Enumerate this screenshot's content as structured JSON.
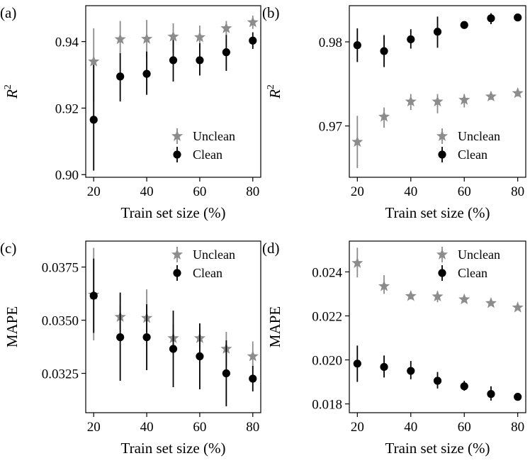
{
  "colors": {
    "unclean": "#8c8c8c",
    "clean": "#000000"
  },
  "chart_data": [
    {
      "type": "scatter",
      "panel_label": "(a)",
      "xlabel": "Train set size (%)",
      "ylabel": "R",
      "ylabel_sup": "2",
      "x": [
        20,
        30,
        40,
        50,
        60,
        70,
        80
      ],
      "xticks": [
        20,
        40,
        60,
        80
      ],
      "xlim": [
        17,
        83
      ],
      "yticks": [
        0.9,
        0.92,
        0.94
      ],
      "ytick_labels": [
        "0.90",
        "0.92",
        "0.94"
      ],
      "ylim": [
        0.8992,
        0.9508
      ],
      "legend": "lower-right",
      "series": [
        {
          "name": "Unclean",
          "marker": "star",
          "values": [
            0.934,
            0.9407,
            0.9408,
            0.9415,
            0.9413,
            0.944,
            0.9458
          ],
          "err_low": [
            0.922,
            0.936,
            0.935,
            0.937,
            0.938,
            0.9418,
            0.9438
          ],
          "err_high": [
            0.944,
            0.9462,
            0.9465,
            0.9455,
            0.9448,
            0.9462,
            0.9478
          ]
        },
        {
          "name": "Clean",
          "marker": "circle",
          "values": [
            0.9165,
            0.9295,
            0.9303,
            0.9344,
            0.9344,
            0.9368,
            0.9403
          ],
          "err_low": [
            0.9012,
            0.922,
            0.924,
            0.928,
            0.9298,
            0.9312,
            0.9378
          ],
          "err_high": [
            0.933,
            0.9365,
            0.937,
            0.9405,
            0.9395,
            0.942,
            0.9428
          ]
        }
      ]
    },
    {
      "type": "scatter",
      "panel_label": "(b)",
      "xlabel": "Train set size (%)",
      "ylabel": "R",
      "ylabel_sup": "2",
      "x": [
        20,
        30,
        40,
        50,
        60,
        70,
        80
      ],
      "xticks": [
        20,
        40,
        60,
        80
      ],
      "xlim": [
        17,
        83
      ],
      "yticks": [
        0.97,
        0.98
      ],
      "ytick_labels": [
        "0.97",
        "0.98"
      ],
      "ylim": [
        0.9639,
        0.9843
      ],
      "legend": "lower-right",
      "series": [
        {
          "name": "Unclean",
          "marker": "star",
          "values": [
            0.9681,
            0.9711,
            0.9729,
            0.9729,
            0.9731,
            0.9735,
            0.9739
          ],
          "err_low": [
            0.965,
            0.9698,
            0.9719,
            0.9715,
            0.9722,
            0.9731,
            0.9735
          ],
          "err_high": [
            0.9712,
            0.9722,
            0.9738,
            0.9738,
            0.9738,
            0.9739,
            0.9743
          ]
        },
        {
          "name": "Clean",
          "marker": "circle",
          "values": [
            0.9796,
            0.9789,
            0.9803,
            0.9812,
            0.982,
            0.9828,
            0.9829
          ],
          "err_low": [
            0.9776,
            0.977,
            0.9792,
            0.9793,
            0.9816,
            0.9821,
            0.9825
          ],
          "err_high": [
            0.9816,
            0.9808,
            0.9815,
            0.983,
            0.9824,
            0.9834,
            0.9833
          ]
        }
      ]
    },
    {
      "type": "scatter",
      "panel_label": "(c)",
      "xlabel": "Train set size (%)",
      "ylabel": "MAPE",
      "x": [
        20,
        30,
        40,
        50,
        60,
        70,
        80
      ],
      "xticks": [
        20,
        40,
        60,
        80
      ],
      "xlim": [
        17,
        83
      ],
      "yticks": [
        0.0325,
        0.035,
        0.0375
      ],
      "ytick_labels": [
        "0.0325",
        "0.0350",
        "0.0375"
      ],
      "ylim": [
        0.03065,
        0.03872
      ],
      "legend": "upper-right",
      "series": [
        {
          "name": "Unclean",
          "marker": "star",
          "values": [
            0.0362,
            0.03515,
            0.0351,
            0.03415,
            0.03415,
            0.03365,
            0.0333
          ],
          "err_low": [
            0.03405,
            0.03455,
            0.03445,
            0.0334,
            0.03375,
            0.03285,
            0.0327
          ],
          "err_high": [
            0.0384,
            0.03575,
            0.03645,
            0.0348,
            0.03465,
            0.03445,
            0.034
          ]
        },
        {
          "name": "Clean",
          "marker": "circle",
          "values": [
            0.03615,
            0.0342,
            0.0342,
            0.03365,
            0.0333,
            0.0325,
            0.03225
          ],
          "err_low": [
            0.0344,
            0.03215,
            0.03265,
            0.03185,
            0.03175,
            0.03095,
            0.03165
          ],
          "err_high": [
            0.0379,
            0.0363,
            0.03575,
            0.03545,
            0.03485,
            0.03405,
            0.03285
          ]
        }
      ]
    },
    {
      "type": "scatter",
      "panel_label": "(d)",
      "xlabel": "Train set size (%)",
      "ylabel": "MAPE",
      "x": [
        20,
        30,
        40,
        50,
        60,
        70,
        80
      ],
      "xticks": [
        20,
        40,
        60,
        80
      ],
      "xlim": [
        17,
        83
      ],
      "yticks": [
        0.018,
        0.02,
        0.022,
        0.024
      ],
      "ytick_labels": [
        "0.018",
        "0.020",
        "0.022",
        "0.024"
      ],
      "ylim": [
        0.0176,
        0.0254
      ],
      "legend": "upper-right",
      "series": [
        {
          "name": "Unclean",
          "marker": "star",
          "values": [
            0.0244,
            0.02335,
            0.0229,
            0.02288,
            0.02275,
            0.02258,
            0.02238
          ],
          "err_low": [
            0.02375,
            0.023,
            0.02275,
            0.02262,
            0.02262,
            0.02248,
            0.02228
          ],
          "err_high": [
            0.0251,
            0.02385,
            0.02305,
            0.02312,
            0.0229,
            0.0227,
            0.02248
          ]
        },
        {
          "name": "Clean",
          "marker": "circle",
          "values": [
            0.01983,
            0.01968,
            0.0195,
            0.01905,
            0.0188,
            0.01845,
            0.01832
          ],
          "err_low": [
            0.019,
            0.0192,
            0.01912,
            0.0187,
            0.0186,
            0.01815,
            0.01815
          ],
          "err_high": [
            0.02065,
            0.0202,
            0.01995,
            0.01945,
            0.01905,
            0.0188,
            0.0185
          ]
        }
      ]
    }
  ]
}
